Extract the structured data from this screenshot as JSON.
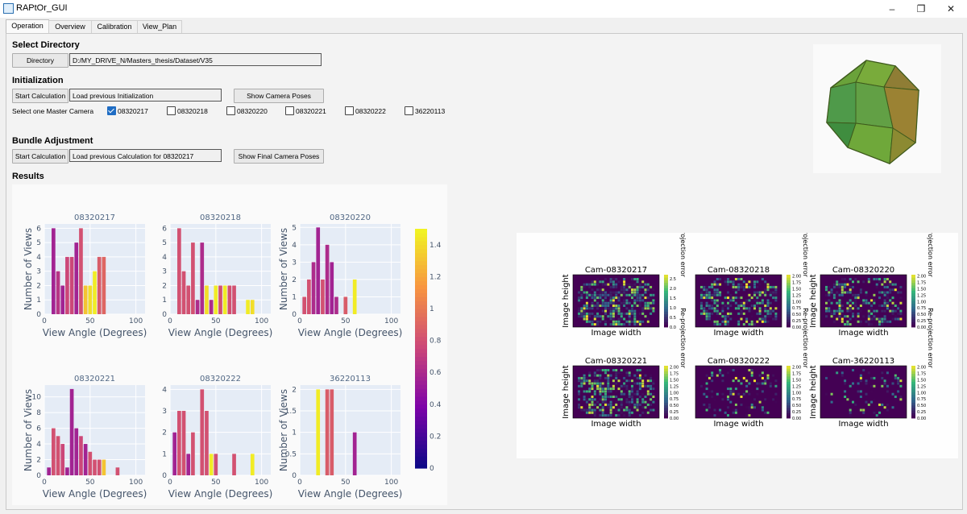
{
  "window": {
    "title": "RAPtOr_GUI",
    "minimize_icon": "minimize-icon",
    "restore_icon": "restore-icon",
    "close_icon": "close-icon"
  },
  "tabs": [
    {
      "label": "Operation"
    },
    {
      "label": "Overview"
    },
    {
      "label": "Calibration"
    },
    {
      "label": "View_Plan"
    }
  ],
  "select_directory": {
    "heading": "Select Directory",
    "button_label": "Directory",
    "path_value": "D:/MY_DRIVE_N/Masters_thesis/Dataset/V35"
  },
  "initialization": {
    "heading": "Initialization",
    "start_button": "Start Calculation",
    "status_value": "Load previous Initialization",
    "show_poses_button": "Show Camera Poses",
    "master_label": "Select one Master Camera",
    "cameras": [
      {
        "label": "08320217",
        "checked": true
      },
      {
        "label": "08320218",
        "checked": false
      },
      {
        "label": "08320220",
        "checked": false
      },
      {
        "label": "08320221",
        "checked": false
      },
      {
        "label": "08320222",
        "checked": false
      },
      {
        "label": "36220113",
        "checked": false
      }
    ]
  },
  "bundle_adjustment": {
    "heading": "Bundle Adjustment",
    "start_button": "Start Calculation",
    "status_value": "Load previous Calculation for 08320217",
    "show_final_button": "Show Final Camera Poses"
  },
  "results": {
    "heading": "Results"
  },
  "colors": {
    "accent": "#1f6dc4",
    "plot_bg": "#e5ecf6",
    "axis_text": "#44546a",
    "title_text": "#506784"
  },
  "chart_data": [
    {
      "type": "bar",
      "title": "08320217",
      "xlabel": "View Angle (Degrees)",
      "ylabel": "Number of Views",
      "xlim": [
        0,
        110
      ],
      "ylim": [
        0,
        6.3
      ],
      "xticks": [
        0,
        50,
        100
      ],
      "yticks": [
        0,
        1,
        2,
        3,
        4,
        5,
        6
      ],
      "bars": [
        {
          "x": 10,
          "y": 6,
          "c": 0.55
        },
        {
          "x": 15,
          "y": 3,
          "c": 0.65
        },
        {
          "x": 20,
          "y": 2,
          "c": 0.55
        },
        {
          "x": 25,
          "y": 4,
          "c": 0.75
        },
        {
          "x": 30,
          "y": 4,
          "c": 0.75
        },
        {
          "x": 35,
          "y": 5,
          "c": 0.55
        },
        {
          "x": 40,
          "y": 6,
          "c": 0.8
        },
        {
          "x": 45,
          "y": 2,
          "c": 1.3
        },
        {
          "x": 50,
          "y": 2,
          "c": 1.4
        },
        {
          "x": 55,
          "y": 3,
          "c": 1.45
        },
        {
          "x": 60,
          "y": 4,
          "c": 0.85
        },
        {
          "x": 65,
          "y": 4,
          "c": 0.9
        }
      ]
    },
    {
      "type": "bar",
      "title": "08320218",
      "xlabel": "View Angle (Degrees)",
      "ylabel": "",
      "xlim": [
        0,
        110
      ],
      "ylim": [
        0,
        6.3
      ],
      "xticks": [
        0,
        50,
        100
      ],
      "yticks": [
        0,
        1,
        2,
        3,
        4,
        5,
        6
      ],
      "bars": [
        {
          "x": 10,
          "y": 6,
          "c": 0.8
        },
        {
          "x": 15,
          "y": 3,
          "c": 0.8
        },
        {
          "x": 20,
          "y": 2,
          "c": 0.8
        },
        {
          "x": 25,
          "y": 5,
          "c": 0.8
        },
        {
          "x": 30,
          "y": 1,
          "c": 0.6
        },
        {
          "x": 35,
          "y": 5,
          "c": 0.6
        },
        {
          "x": 40,
          "y": 2,
          "c": 1.4
        },
        {
          "x": 45,
          "y": 1,
          "c": 0.6
        },
        {
          "x": 50,
          "y": 2,
          "c": 1.45
        },
        {
          "x": 55,
          "y": 2,
          "c": 0.8
        },
        {
          "x": 60,
          "y": 2,
          "c": 1.45
        },
        {
          "x": 65,
          "y": 2,
          "c": 0.8
        },
        {
          "x": 70,
          "y": 2,
          "c": 0.8
        },
        {
          "x": 85,
          "y": 1,
          "c": 1.45
        },
        {
          "x": 90,
          "y": 1,
          "c": 1.4
        }
      ]
    },
    {
      "type": "bar",
      "title": "08320220",
      "xlabel": "View Angle (Degrees)",
      "ylabel": "Number of Views",
      "xlim": [
        0,
        110
      ],
      "ylim": [
        0,
        5.2
      ],
      "xticks": [
        0,
        50,
        100
      ],
      "yticks": [
        0,
        1,
        2,
        3,
        4,
        5
      ],
      "bars": [
        {
          "x": 5,
          "y": 1,
          "c": 0.8
        },
        {
          "x": 10,
          "y": 2,
          "c": 0.8
        },
        {
          "x": 15,
          "y": 3,
          "c": 0.6
        },
        {
          "x": 20,
          "y": 5,
          "c": 0.55
        },
        {
          "x": 25,
          "y": 2,
          "c": 0.8
        },
        {
          "x": 30,
          "y": 4,
          "c": 0.6
        },
        {
          "x": 35,
          "y": 3,
          "c": 0.55
        },
        {
          "x": 40,
          "y": 1,
          "c": 0.6
        },
        {
          "x": 50,
          "y": 1,
          "c": 0.85
        },
        {
          "x": 60,
          "y": 2,
          "c": 1.45
        }
      ]
    },
    {
      "type": "bar",
      "title": "08320221",
      "xlabel": "View Angle (Degrees)",
      "ylabel": "Number of Views",
      "xlim": [
        0,
        110
      ],
      "ylim": [
        0,
        11.5
      ],
      "xticks": [
        0,
        50,
        100
      ],
      "yticks": [
        0,
        2,
        4,
        6,
        8,
        10
      ],
      "bars": [
        {
          "x": 5,
          "y": 1,
          "c": 0.55
        },
        {
          "x": 10,
          "y": 6,
          "c": 0.8
        },
        {
          "x": 15,
          "y": 5,
          "c": 0.8
        },
        {
          "x": 20,
          "y": 4,
          "c": 0.75
        },
        {
          "x": 25,
          "y": 1,
          "c": 0.55
        },
        {
          "x": 30,
          "y": 11,
          "c": 0.55
        },
        {
          "x": 35,
          "y": 6,
          "c": 0.55
        },
        {
          "x": 40,
          "y": 5,
          "c": 0.75
        },
        {
          "x": 45,
          "y": 4,
          "c": 0.55
        },
        {
          "x": 50,
          "y": 3,
          "c": 0.8
        },
        {
          "x": 55,
          "y": 2,
          "c": 0.8
        },
        {
          "x": 60,
          "y": 2,
          "c": 0.8
        },
        {
          "x": 65,
          "y": 2,
          "c": 1.3
        },
        {
          "x": 80,
          "y": 1,
          "c": 0.8
        }
      ]
    },
    {
      "type": "bar",
      "title": "08320222",
      "xlabel": "View Angle (Degrees)",
      "ylabel": "",
      "xlim": [
        0,
        110
      ],
      "ylim": [
        0,
        4.2
      ],
      "xticks": [
        0,
        50,
        100
      ],
      "yticks": [
        0,
        1,
        2,
        3,
        4
      ],
      "bars": [
        {
          "x": 5,
          "y": 2,
          "c": 0.55
        },
        {
          "x": 10,
          "y": 3,
          "c": 0.8
        },
        {
          "x": 15,
          "y": 3,
          "c": 0.8
        },
        {
          "x": 20,
          "y": 1,
          "c": 0.55
        },
        {
          "x": 25,
          "y": 2,
          "c": 0.8
        },
        {
          "x": 35,
          "y": 4,
          "c": 0.8
        },
        {
          "x": 40,
          "y": 3,
          "c": 0.8
        },
        {
          "x": 45,
          "y": 1,
          "c": 1.45
        },
        {
          "x": 50,
          "y": 1,
          "c": 0.8
        },
        {
          "x": 70,
          "y": 1,
          "c": 0.8
        },
        {
          "x": 90,
          "y": 1,
          "c": 1.45
        }
      ]
    },
    {
      "type": "bar",
      "title": "36220113",
      "xlabel": "View Angle (Degrees)",
      "ylabel": "Number of Views",
      "xlim": [
        0,
        110
      ],
      "ylim": [
        0,
        2.1
      ],
      "xticks": [
        0,
        50,
        100
      ],
      "yticks": [
        0,
        0.5,
        1,
        1.5,
        2
      ],
      "bars": [
        {
          "x": 20,
          "y": 2,
          "c": 1.45
        },
        {
          "x": 30,
          "y": 2,
          "c": 0.85
        },
        {
          "x": 35,
          "y": 2,
          "c": 0.85
        },
        {
          "x": 60,
          "y": 1,
          "c": 0.55
        }
      ]
    }
  ],
  "colorbar": {
    "min": 0,
    "max": 1.5,
    "ticks": [
      0,
      0.2,
      0.4,
      0.6,
      0.8,
      1,
      1.2,
      1.4
    ]
  },
  "heatmaps": [
    {
      "title": "Cam-08320217",
      "xlabel": "Image width",
      "ylabel": "Image height",
      "cbar_label": "Re-projection error",
      "cbar_ticks": [
        "0.0",
        "0.5",
        "1.0",
        "1.5",
        "2.0",
        "2.5"
      ]
    },
    {
      "title": "Cam-08320218",
      "xlabel": "Image width",
      "ylabel": "",
      "cbar_label": "Re-projection error",
      "cbar_ticks": [
        "0.00",
        "0.25",
        "0.50",
        "0.75",
        "1.00",
        "1.25",
        "1.50",
        "1.75",
        "2.00"
      ]
    },
    {
      "title": "Cam-08320220",
      "xlabel": "Image width",
      "ylabel": "Image height",
      "cbar_label": "Re-projection error",
      "cbar_ticks": [
        "0.00",
        "0.25",
        "0.50",
        "0.75",
        "1.00",
        "1.25",
        "1.50",
        "1.75",
        "2.00"
      ]
    },
    {
      "title": "Cam-08320221",
      "xlabel": "Image width",
      "ylabel": "Image height",
      "cbar_label": "Re-projection error",
      "cbar_ticks": [
        "0.00",
        "0.25",
        "0.50",
        "0.75",
        "1.00",
        "1.25",
        "1.50",
        "1.75",
        "2.00"
      ]
    },
    {
      "title": "Cam-08320222",
      "xlabel": "Image width",
      "ylabel": "",
      "cbar_label": "Re-projection error",
      "cbar_ticks": [
        "0.00",
        "0.25",
        "0.50",
        "0.75",
        "1.00",
        "1.25",
        "1.50",
        "1.75",
        "2.00"
      ]
    },
    {
      "title": "Cam-36220113",
      "xlabel": "Image width",
      "ylabel": "Image height",
      "cbar_label": "Re-projection error",
      "cbar_ticks": [
        "0.00",
        "0.25",
        "0.50",
        "0.75",
        "1.00",
        "1.25",
        "1.50",
        "1.75",
        "2.00"
      ]
    }
  ]
}
